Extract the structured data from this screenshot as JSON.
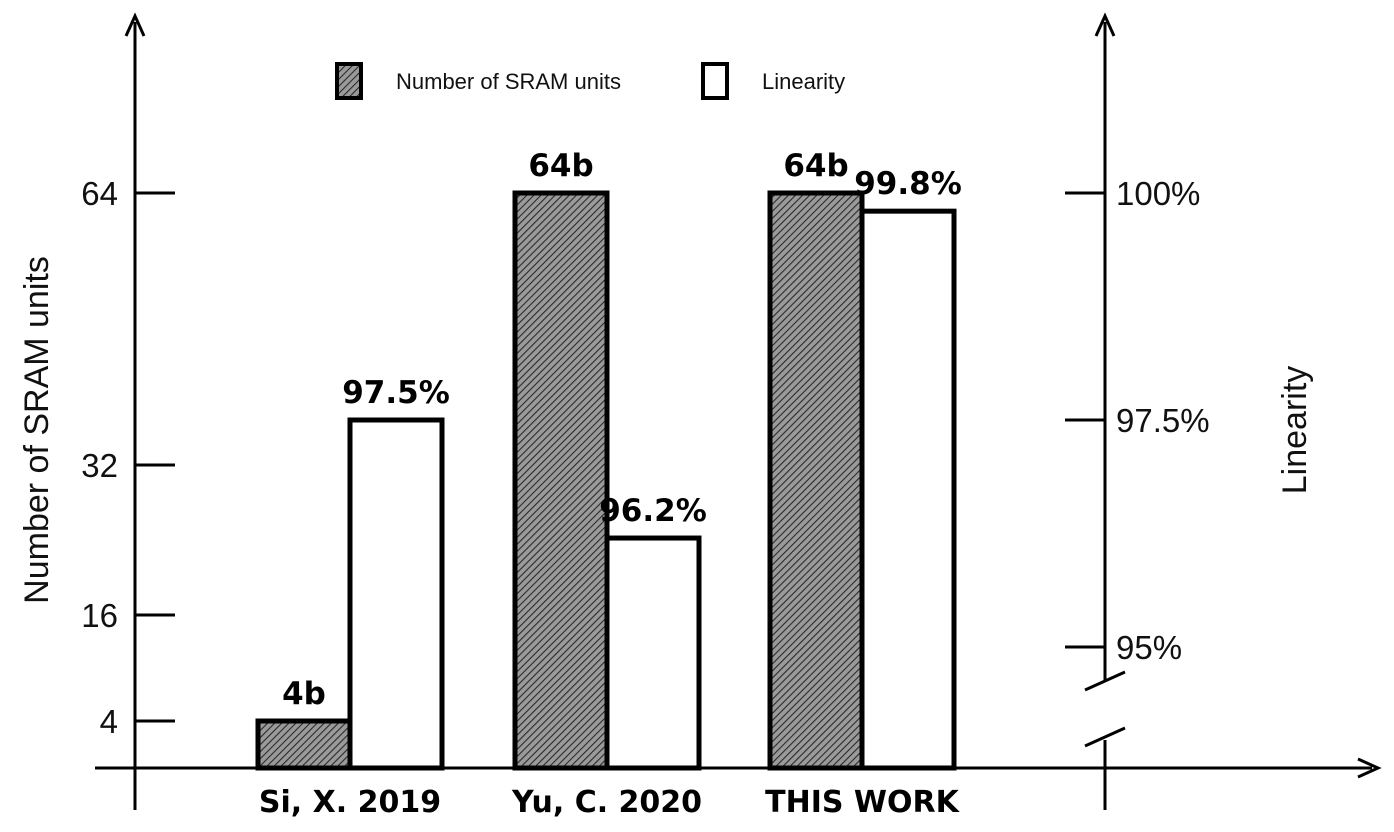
{
  "chart_data": {
    "type": "bar",
    "title": "",
    "categories": [
      "Si, X. 2019",
      "Yu, C. 2020",
      "THIS WORK"
    ],
    "series": [
      {
        "name": "Number of SRAM units",
        "axis": "left",
        "pattern": "hatched",
        "values": [
          4,
          64,
          64
        ],
        "labels": [
          "4b",
          "64b",
          "64b"
        ]
      },
      {
        "name": "Linearity",
        "axis": "right",
        "pattern": "white",
        "values": [
          97.5,
          96.2,
          99.8
        ],
        "labels": [
          "97.5%",
          "96.2%",
          "99.8%"
        ]
      }
    ],
    "left_axis": {
      "label": "Number of SRAM units",
      "ticks": [
        {
          "value": 4,
          "label": "4"
        },
        {
          "value": 16,
          "label": "16"
        },
        {
          "value": 32,
          "label": "32"
        },
        {
          "value": 64,
          "label": "64"
        }
      ]
    },
    "right_axis": {
      "label": "Linearity",
      "axis_break": true,
      "ticks": [
        {
          "value": 95,
          "label": "95%"
        },
        {
          "value": 97.5,
          "label": "97.5%"
        },
        {
          "value": 100,
          "label": "100%"
        }
      ]
    },
    "legend": {
      "placement": "top-center",
      "entries": [
        "Number of SRAM units",
        "Linearity"
      ]
    },
    "grid": false
  },
  "colors": {
    "axis": "#000000",
    "hatch_background": "#9a9a9a",
    "hatch_line": "#2a2a2a",
    "bar_fill_white": "#ffffff",
    "text": "#111111"
  }
}
